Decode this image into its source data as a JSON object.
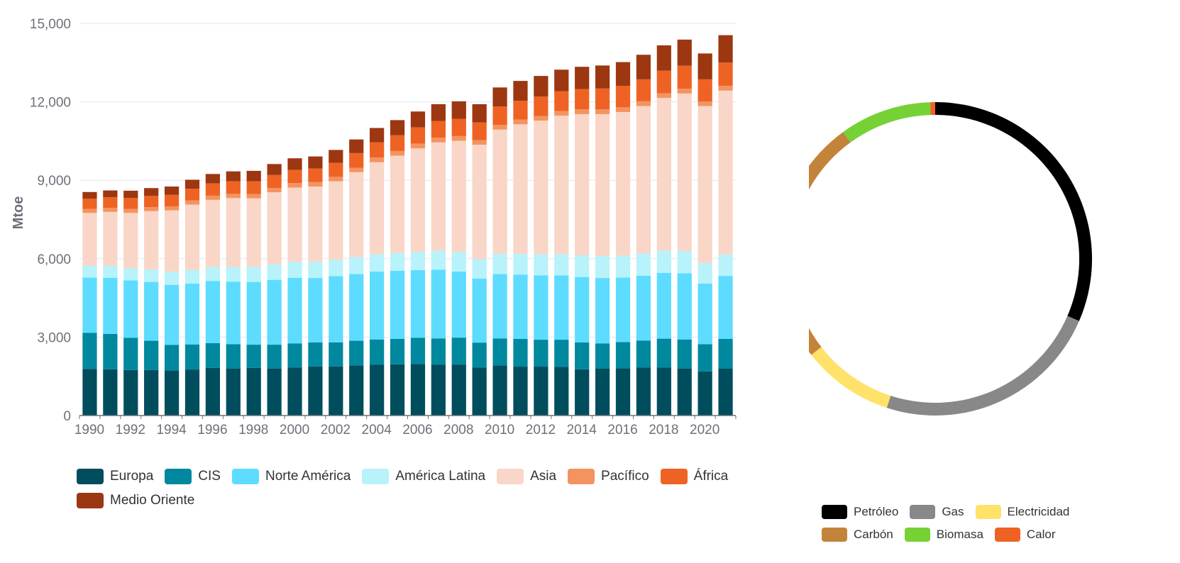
{
  "chart_data": [
    {
      "type": "bar",
      "stacked": true,
      "ylabel": "Mtoe",
      "ylim": [
        0,
        15000
      ],
      "yticks": [
        "0",
        "3,000",
        "6,000",
        "9,000",
        "12,000",
        "15,000"
      ],
      "yticks_values": [
        0,
        3000,
        6000,
        9000,
        12000,
        15000
      ],
      "xtick_labels": [
        "1990",
        "1992",
        "1994",
        "1996",
        "1998",
        "2000",
        "2002",
        "2004",
        "2006",
        "2008",
        "2010",
        "2012",
        "2014",
        "2016",
        "2018",
        "2020"
      ],
      "grid": true,
      "legend_position": "bottom",
      "categories": [
        "1990",
        "1991",
        "1992",
        "1993",
        "1994",
        "1995",
        "1996",
        "1997",
        "1998",
        "1999",
        "2000",
        "2001",
        "2002",
        "2003",
        "2004",
        "2005",
        "2006",
        "2007",
        "2008",
        "2009",
        "2010",
        "2011",
        "2012",
        "2013",
        "2014",
        "2015",
        "2016",
        "2017",
        "2018",
        "2019",
        "2020",
        "2021"
      ],
      "series": [
        {
          "name": "Europa",
          "color": "#004d5e",
          "values": [
            1780,
            1770,
            1740,
            1740,
            1720,
            1760,
            1820,
            1800,
            1820,
            1800,
            1840,
            1880,
            1880,
            1920,
            1950,
            1960,
            1970,
            1950,
            1950,
            1830,
            1920,
            1870,
            1870,
            1860,
            1770,
            1790,
            1810,
            1840,
            1830,
            1800,
            1690,
            1790
          ]
        },
        {
          "name": "CIS",
          "color": "#00889e",
          "values": [
            1380,
            1350,
            1230,
            1120,
            980,
            960,
            950,
            930,
            890,
            910,
            920,
            920,
            920,
            940,
            960,
            970,
            1000,
            1000,
            1030,
            960,
            1030,
            1060,
            1030,
            1040,
            1030,
            970,
            1000,
            1030,
            1110,
            1110,
            1040,
            1140
          ]
        },
        {
          "name": "Norte América",
          "color": "#5ddcff",
          "values": [
            2120,
            2150,
            2200,
            2250,
            2300,
            2330,
            2370,
            2390,
            2400,
            2480,
            2510,
            2460,
            2530,
            2550,
            2600,
            2610,
            2590,
            2630,
            2530,
            2450,
            2460,
            2460,
            2460,
            2460,
            2500,
            2500,
            2470,
            2480,
            2520,
            2530,
            2320,
            2410
          ]
        },
        {
          "name": "América Latina",
          "color": "#b8f2fb",
          "values": [
            450,
            460,
            470,
            480,
            500,
            520,
            540,
            560,
            580,
            600,
            610,
            620,
            630,
            650,
            660,
            680,
            700,
            720,
            740,
            740,
            780,
            790,
            810,
            820,
            830,
            840,
            840,
            850,
            850,
            850,
            780,
            820
          ]
        },
        {
          "name": "Asia",
          "color": "#f9d6c7",
          "values": [
            2020,
            2060,
            2110,
            2230,
            2350,
            2500,
            2570,
            2640,
            2620,
            2750,
            2840,
            2880,
            3000,
            3250,
            3520,
            3720,
            3960,
            4150,
            4260,
            4380,
            4750,
            4960,
            5110,
            5290,
            5400,
            5430,
            5490,
            5640,
            5840,
            6030,
            6010,
            6270
          ]
        },
        {
          "name": "Pacífico",
          "color": "#f4935f",
          "values": [
            150,
            150,
            150,
            150,
            150,
            160,
            160,
            160,
            160,
            160,
            170,
            170,
            170,
            170,
            180,
            180,
            180,
            180,
            180,
            170,
            180,
            180,
            180,
            180,
            180,
            180,
            180,
            180,
            180,
            180,
            170,
            180
          ]
        },
        {
          "name": "África",
          "color": "#ee6324",
          "values": [
            400,
            410,
            420,
            430,
            440,
            450,
            470,
            480,
            490,
            500,
            510,
            520,
            540,
            560,
            580,
            600,
            620,
            640,
            660,
            680,
            700,
            720,
            740,
            760,
            780,
            800,
            820,
            840,
            860,
            880,
            850,
            890
          ]
        },
        {
          "name": "Medio Oriente",
          "color": "#9c3712",
          "values": [
            250,
            260,
            280,
            300,
            320,
            340,
            360,
            380,
            400,
            420,
            440,
            460,
            490,
            520,
            550,
            580,
            610,
            640,
            670,
            700,
            730,
            760,
            790,
            820,
            850,
            880,
            910,
            940,
            970,
            1000,
            990,
            1050
          ]
        }
      ]
    },
    {
      "type": "pie",
      "donut": true,
      "legend_position": "bottom",
      "categories": [
        "Petróleo",
        "Gas",
        "Electricidad",
        "Carbón",
        "Biomasa",
        "Calor"
      ],
      "values": [
        31.5,
        23.5,
        9.5,
        25.5,
        9.5,
        0.5
      ],
      "colors": [
        "#000000",
        "#888888",
        "#ffe26a",
        "#c4833a",
        "#76d135",
        "#ee6324"
      ]
    }
  ]
}
